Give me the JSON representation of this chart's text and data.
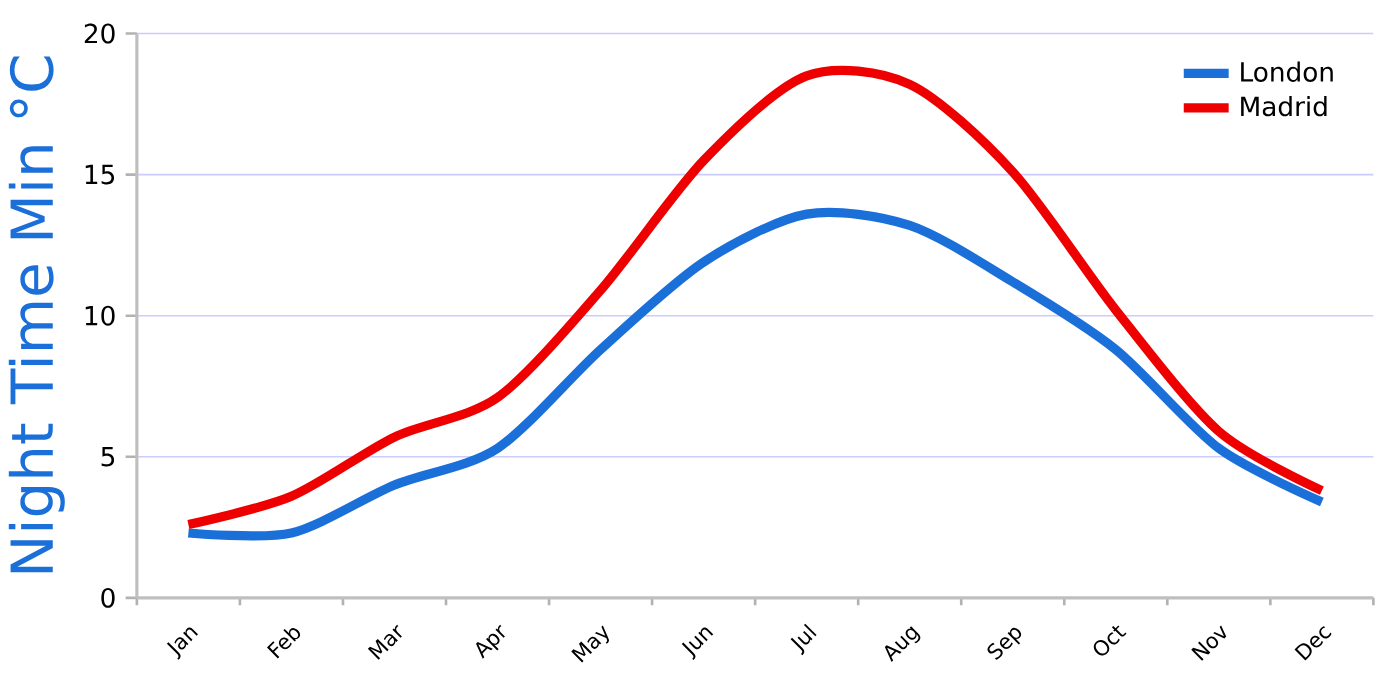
{
  "chart_data": {
    "type": "line",
    "ylabel": "Night Time Min °C",
    "categories": [
      "Jan",
      "Feb",
      "Mar",
      "Apr",
      "May",
      "Jun",
      "Jul",
      "Aug",
      "Sep",
      "Oct",
      "Nov",
      "Dec"
    ],
    "series": [
      {
        "name": "London",
        "color": "#1a6fd8",
        "values": [
          2.3,
          2.3,
          4.0,
          5.3,
          8.8,
          11.9,
          13.6,
          13.2,
          11.2,
          8.8,
          5.3,
          3.4
        ]
      },
      {
        "name": "Madrid",
        "color": "#ee0000",
        "values": [
          2.6,
          3.6,
          5.7,
          7.1,
          10.9,
          15.5,
          18.5,
          18.2,
          15.1,
          10.2,
          5.9,
          3.8
        ]
      }
    ],
    "ylim": [
      0,
      20
    ],
    "yticks": [
      0,
      5,
      10,
      15,
      20
    ],
    "grid": "y",
    "legend": "top right",
    "marker": "none",
    "line_style": "solid"
  }
}
